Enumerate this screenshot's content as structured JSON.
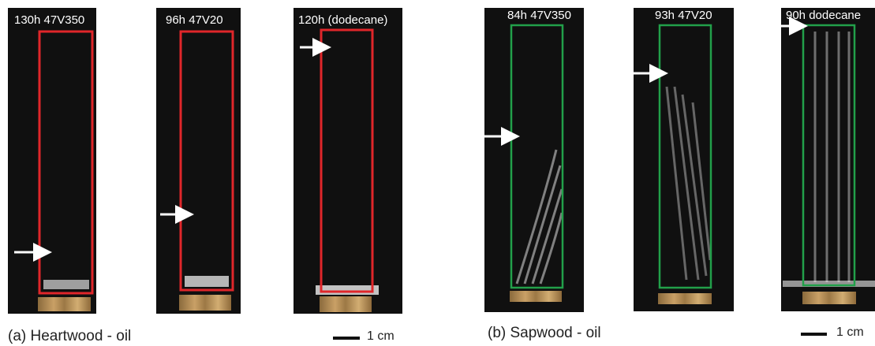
{
  "figure_a": {
    "panels": [
      {
        "label": "130h 47V350"
      },
      {
        "label": "96h 47V20"
      },
      {
        "label": "120h (dodecane)"
      }
    ],
    "caption": "(a) Heartwood - oil",
    "scale_label": "1 cm"
  },
  "figure_b": {
    "panels": [
      {
        "label": "84h 47V350"
      },
      {
        "label": "93h 47V20"
      },
      {
        "label": "90h dodecane"
      }
    ],
    "caption": "(b) Sapwood - oil",
    "scale_label": "1 cm"
  }
}
